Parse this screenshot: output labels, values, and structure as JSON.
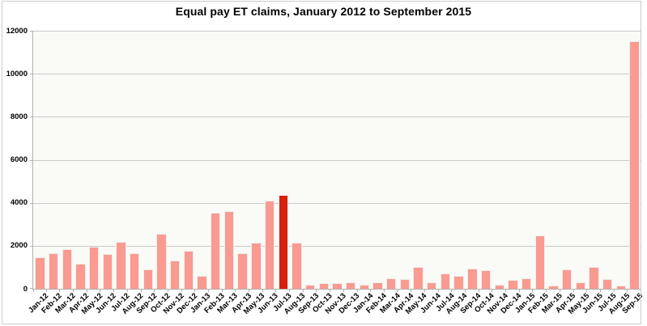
{
  "chart_data": {
    "type": "bar",
    "title": "Equal pay ET claims, January 2012 to September 2015",
    "categories": [
      "Jan-12",
      "Feb-12",
      "Mar-12",
      "Apr-12",
      "May-12",
      "Jun-12",
      "Jul-12",
      "Aug-12",
      "Sep-12",
      "Oct-12",
      "Nov-12",
      "Dec-12",
      "Jan-13",
      "Feb-13",
      "Mar-13",
      "Apr-13",
      "May-13",
      "Jun-13",
      "Jul-13",
      "Aug-13",
      "Sep-13",
      "Oct-13",
      "Nov-13",
      "Dec-13",
      "Jan-14",
      "Feb-14",
      "Mar-14",
      "Apr-14",
      "May-14",
      "Jun-14",
      "Jul-14",
      "Aug-14",
      "Sep-14",
      "Oct-14",
      "Nov-14",
      "Dec-14",
      "Jan-15",
      "Feb-15",
      "Mar-15",
      "Apr-15",
      "May-15",
      "Jun-15",
      "Jul-15",
      "Aug-15",
      "Sep-15"
    ],
    "values": [
      1450,
      1650,
      1850,
      1150,
      1950,
      1600,
      2200,
      1650,
      900,
      2550,
      1300,
      1750,
      600,
      3550,
      3600,
      1650,
      2150,
      4100,
      4350,
      2150,
      200,
      250,
      250,
      300,
      200,
      300,
      500,
      450,
      1000,
      300,
      700,
      600,
      950,
      850,
      200,
      400,
      500,
      2500,
      150,
      900,
      300,
      1000,
      450,
      150,
      11500
    ],
    "highlight_index": 18,
    "highlight_category": "Jul-13",
    "ylim": [
      0,
      12000
    ],
    "yticks": [
      0,
      2000,
      4000,
      6000,
      8000,
      10000,
      12000
    ],
    "grid": true,
    "legend": "none",
    "colors": {
      "bar": "#fa9a91",
      "bar_highlight": "#d7200e",
      "bar_border": "#f0eeea",
      "plot_bg": "#fafaf7",
      "gridline": "#c9c9c9",
      "axis": "#b0b0b0",
      "text": "#000000"
    }
  }
}
